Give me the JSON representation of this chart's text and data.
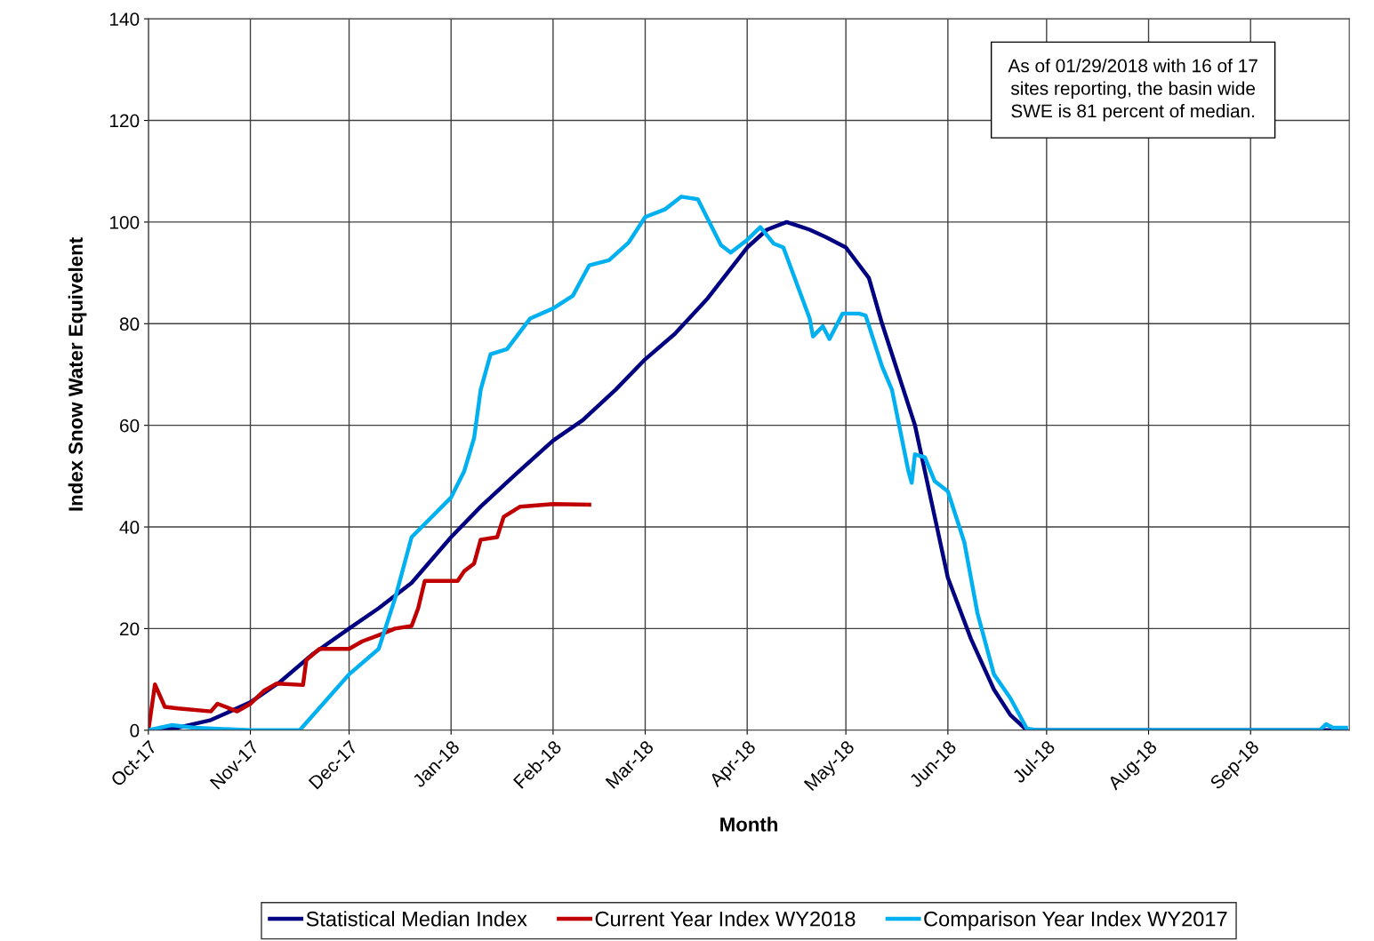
{
  "chart_data": {
    "type": "line",
    "xlabel": "Month",
    "ylabel": "Index Snow Water Equivelent",
    "annotations": [
      "As of 01/29/2018 with 16 of 17\nsites reporting, the basin wide\nSWE is 81 percent of median."
    ],
    "xlim": [
      "2017-10-01",
      "2018-10-01"
    ],
    "xticks": [
      {
        "value": "2017-10-01",
        "label": "Oct-17"
      },
      {
        "value": "2017-11-01",
        "label": "Nov-17"
      },
      {
        "value": "2017-12-01",
        "label": "Dec-17"
      },
      {
        "value": "2018-01-01",
        "label": "Jan-18"
      },
      {
        "value": "2018-02-01",
        "label": "Feb-18"
      },
      {
        "value": "2018-03-01",
        "label": "Mar-18"
      },
      {
        "value": "2018-04-01",
        "label": "Apr-18"
      },
      {
        "value": "2018-05-01",
        "label": "May-18"
      },
      {
        "value": "2018-06-01",
        "label": "Jun-18"
      },
      {
        "value": "2018-07-01",
        "label": "Jul-18"
      },
      {
        "value": "2018-08-01",
        "label": "Aug-18"
      },
      {
        "value": "2018-09-01",
        "label": "Sep-18"
      }
    ],
    "ylim": [
      0,
      140
    ],
    "yticks": [
      0,
      20,
      40,
      60,
      80,
      100,
      120,
      140
    ],
    "grid": true,
    "legend": "bottom",
    "marker": "none",
    "line_style": "solid",
    "series": [
      {
        "name": "Statistical Median Index",
        "color": "#000080",
        "x": [
          "2017-10-01",
          "2017-10-10",
          "2017-10-20",
          "2017-11-01",
          "2017-11-10",
          "2017-11-20",
          "2017-12-01",
          "2017-12-10",
          "2017-12-20",
          "2018-01-01",
          "2018-01-10",
          "2018-01-20",
          "2018-02-01",
          "2018-02-10",
          "2018-02-20",
          "2018-03-01",
          "2018-03-10",
          "2018-03-20",
          "2018-04-01",
          "2018-04-07",
          "2018-04-13",
          "2018-04-20",
          "2018-04-25",
          "2018-05-01",
          "2018-05-08",
          "2018-05-12",
          "2018-05-16",
          "2018-05-22",
          "2018-05-28",
          "2018-06-01",
          "2018-06-08",
          "2018-06-15",
          "2018-06-20",
          "2018-06-25",
          "2018-09-30"
        ],
        "values": [
          0,
          0.5,
          2,
          5.5,
          9.5,
          15,
          20,
          24,
          29,
          38,
          44,
          50,
          57,
          61,
          67,
          73,
          78,
          85,
          95,
          98.5,
          100,
          98.5,
          97,
          95,
          89,
          80,
          72,
          60,
          42,
          30,
          18,
          8,
          3,
          0,
          0
        ]
      },
      {
        "name": "Current Year Index WY2018",
        "color": "#c00000",
        "x": [
          "2017-10-01",
          "2017-10-03",
          "2017-10-06",
          "2017-10-10",
          "2017-10-20",
          "2017-10-22",
          "2017-10-28",
          "2017-11-01",
          "2017-11-05",
          "2017-11-09",
          "2017-11-17",
          "2017-11-18",
          "2017-11-22",
          "2017-12-01",
          "2017-12-05",
          "2017-12-10",
          "2017-12-15",
          "2017-12-20",
          "2017-12-22",
          "2017-12-24",
          "2017-12-28",
          "2018-01-03",
          "2018-01-05",
          "2018-01-08",
          "2018-01-10",
          "2018-01-15",
          "2018-01-17",
          "2018-01-22",
          "2018-02-01",
          "2018-02-12"
        ],
        "values": [
          0,
          9,
          4.6,
          4.3,
          3.7,
          5.2,
          3.7,
          5.2,
          7.7,
          9.2,
          8.9,
          13.8,
          16,
          16,
          17.5,
          18.7,
          20,
          20.5,
          24,
          29.4,
          29.4,
          29.4,
          31.3,
          32.8,
          37.5,
          38,
          42,
          44,
          44.5,
          44.4
        ]
      },
      {
        "name": "Comparison Year Index WY2017",
        "color": "#00b0f0",
        "x": [
          "2017-10-01",
          "2017-10-08",
          "2017-10-15",
          "2017-11-01",
          "2017-11-16",
          "2017-12-01",
          "2017-12-10",
          "2017-12-15",
          "2017-12-20",
          "2018-01-01",
          "2018-01-05",
          "2018-01-08",
          "2018-01-10",
          "2018-01-13",
          "2018-01-18",
          "2018-01-25",
          "2018-02-01",
          "2018-02-07",
          "2018-02-12",
          "2018-02-18",
          "2018-02-24",
          "2018-03-01",
          "2018-03-07",
          "2018-03-12",
          "2018-03-17",
          "2018-03-24",
          "2018-03-27",
          "2018-04-01",
          "2018-04-05",
          "2018-04-09",
          "2018-04-12",
          "2018-04-20",
          "2018-04-21",
          "2018-04-24",
          "2018-04-26",
          "2018-04-30",
          "2018-05-05",
          "2018-05-07",
          "2018-05-12",
          "2018-05-15",
          "2018-05-20",
          "2018-05-21",
          "2018-05-22",
          "2018-05-25",
          "2018-05-28",
          "2018-06-01",
          "2018-06-06",
          "2018-06-10",
          "2018-06-15",
          "2018-06-20",
          "2018-06-25",
          "2018-06-28",
          "2018-09-22",
          "2018-09-24",
          "2018-09-26",
          "2018-09-30"
        ],
        "values": [
          0,
          1,
          0.5,
          0,
          0,
          11,
          16,
          26,
          38,
          45.8,
          51,
          57.5,
          67,
          74,
          75,
          81,
          83,
          85.5,
          91.5,
          92.5,
          96,
          101,
          102.5,
          105,
          104.5,
          95.5,
          94,
          96.5,
          99,
          95.8,
          95,
          81,
          77.5,
          79.5,
          77,
          82,
          82,
          81.6,
          71.6,
          67,
          51,
          48.7,
          54.3,
          53.7,
          49,
          47,
          37,
          23,
          11,
          6.3,
          0.3,
          0,
          0,
          1.2,
          0.5,
          0.5
        ]
      }
    ]
  }
}
